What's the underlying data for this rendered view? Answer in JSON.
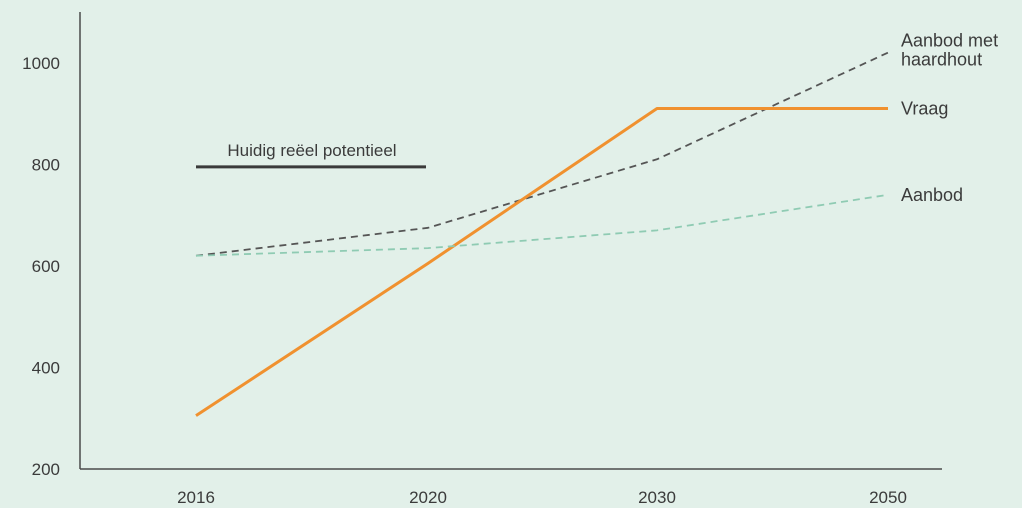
{
  "chart_data": {
    "type": "line",
    "categories": [
      "2016",
      "2020",
      "2030",
      "2050"
    ],
    "ylim": [
      200,
      1100
    ],
    "yticks": [
      200,
      400,
      600,
      800,
      1000
    ],
    "grid": false,
    "series": [
      {
        "name": "Aanbod met haardhout",
        "label_lines": [
          "Aanbod met",
          "haardhout"
        ],
        "values": [
          620,
          675,
          810,
          1020
        ],
        "color": "#555555",
        "style": "dashed"
      },
      {
        "name": "Vraag",
        "label_lines": [
          "Vraag"
        ],
        "values": [
          305,
          605,
          910,
          910
        ],
        "color": "#f0912f",
        "style": "solid"
      },
      {
        "name": "Aanbod",
        "label_lines": [
          "Aanbod"
        ],
        "values": [
          620,
          635,
          670,
          740
        ],
        "color": "#8fcbb3",
        "style": "dashed"
      }
    ],
    "reference_line": {
      "label": "Huidig reëel potentieel",
      "value": 795,
      "from": "2016",
      "to": "2020",
      "color": "#3a3a3a"
    }
  }
}
